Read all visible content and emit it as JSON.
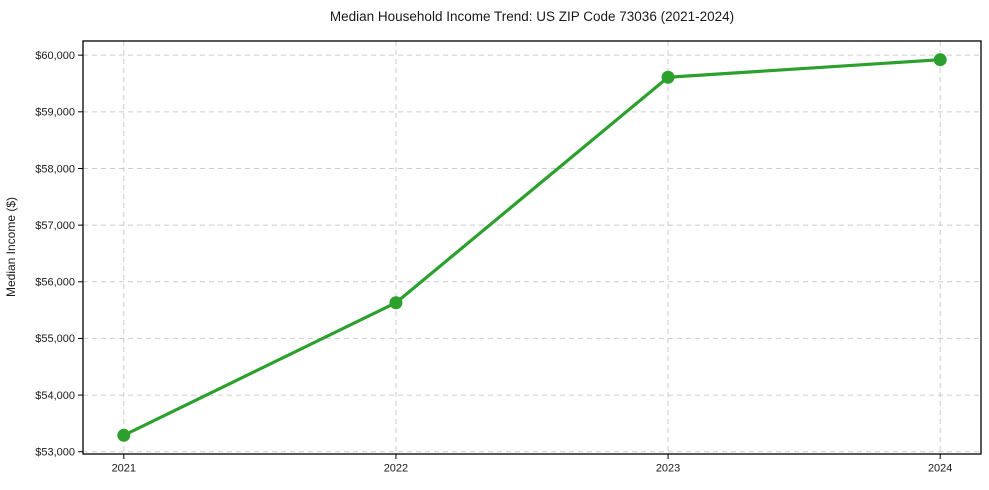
{
  "chart_data": {
    "type": "line",
    "title": "Median Household Income Trend: US ZIP Code 73036 (2021-2024)",
    "xlabel": "",
    "ylabel": "Median Income ($)",
    "categories": [
      "2021",
      "2022",
      "2023",
      "2024"
    ],
    "x": [
      2021,
      2022,
      2023,
      2024
    ],
    "values": [
      53290,
      55630,
      59610,
      59920
    ],
    "yticks": [
      53000,
      54000,
      55000,
      56000,
      57000,
      58000,
      59000,
      60000
    ],
    "ytick_labels": [
      "$53,000",
      "$54,000",
      "$55,000",
      "$56,000",
      "$57,000",
      "$58,000",
      "$59,000",
      "$60,000"
    ],
    "xlim": [
      2020.85,
      2024.15
    ],
    "ylim": [
      52960,
      60250
    ],
    "line_color": "#2ca02c",
    "grid": true,
    "grid_style": "dashed",
    "grid_color": "#cccccc",
    "spine_color": "#000000",
    "legend_position": "none",
    "marker": "circle"
  }
}
